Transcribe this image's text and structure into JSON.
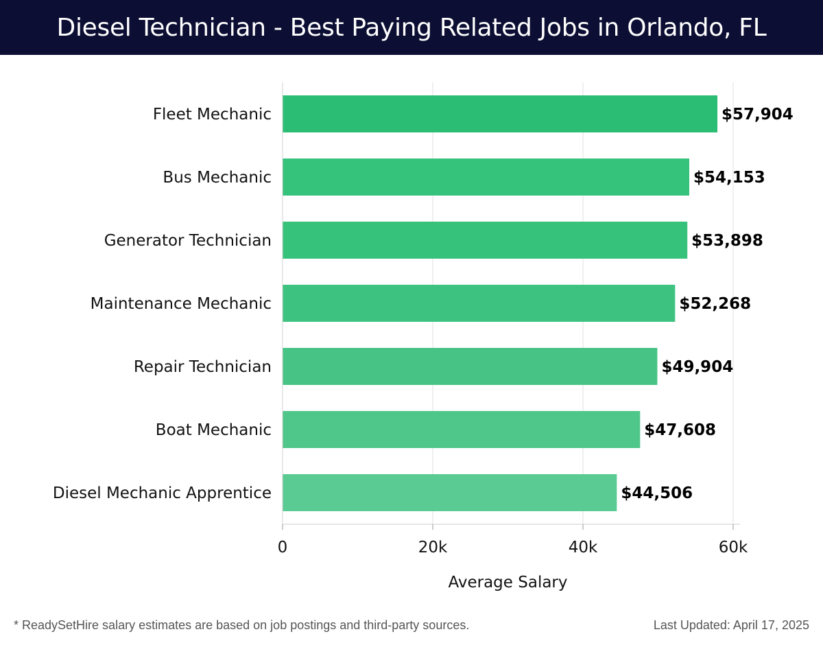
{
  "header": {
    "title": "Diesel Technician - Best Paying Related Jobs in Orlando, FL"
  },
  "chart_data": {
    "type": "bar",
    "orientation": "horizontal",
    "title": "Diesel Technician - Best Paying Related Jobs in Orlando, FL",
    "categories": [
      "Fleet Mechanic",
      "Bus Mechanic",
      "Generator Technician",
      "Maintenance Mechanic",
      "Repair Technician",
      "Boat Mechanic",
      "Diesel Mechanic Apprentice"
    ],
    "values": [
      57904,
      54153,
      53898,
      52268,
      49904,
      47608,
      44506
    ],
    "value_labels": [
      "$57,904",
      "$54,153",
      "$53,898",
      "$52,268",
      "$49,904",
      "$47,608",
      "$44,506"
    ],
    "xlabel": "Average Salary",
    "ylabel": "",
    "xlim": [
      0,
      60000
    ],
    "xticks": [
      0,
      20000,
      40000,
      60000
    ],
    "xtick_labels": [
      "0",
      "20k",
      "40k",
      "60k"
    ],
    "grid": true,
    "bar_colors": [
      "#2bbd74",
      "#35c27b",
      "#37c27c",
      "#3dc37f",
      "#47c485",
      "#4fc68a",
      "#5acb92"
    ]
  },
  "footer": {
    "note": "* ReadySetHire salary estimates are based on job postings and third-party sources.",
    "updated": "Last Updated: April 17, 2025"
  }
}
